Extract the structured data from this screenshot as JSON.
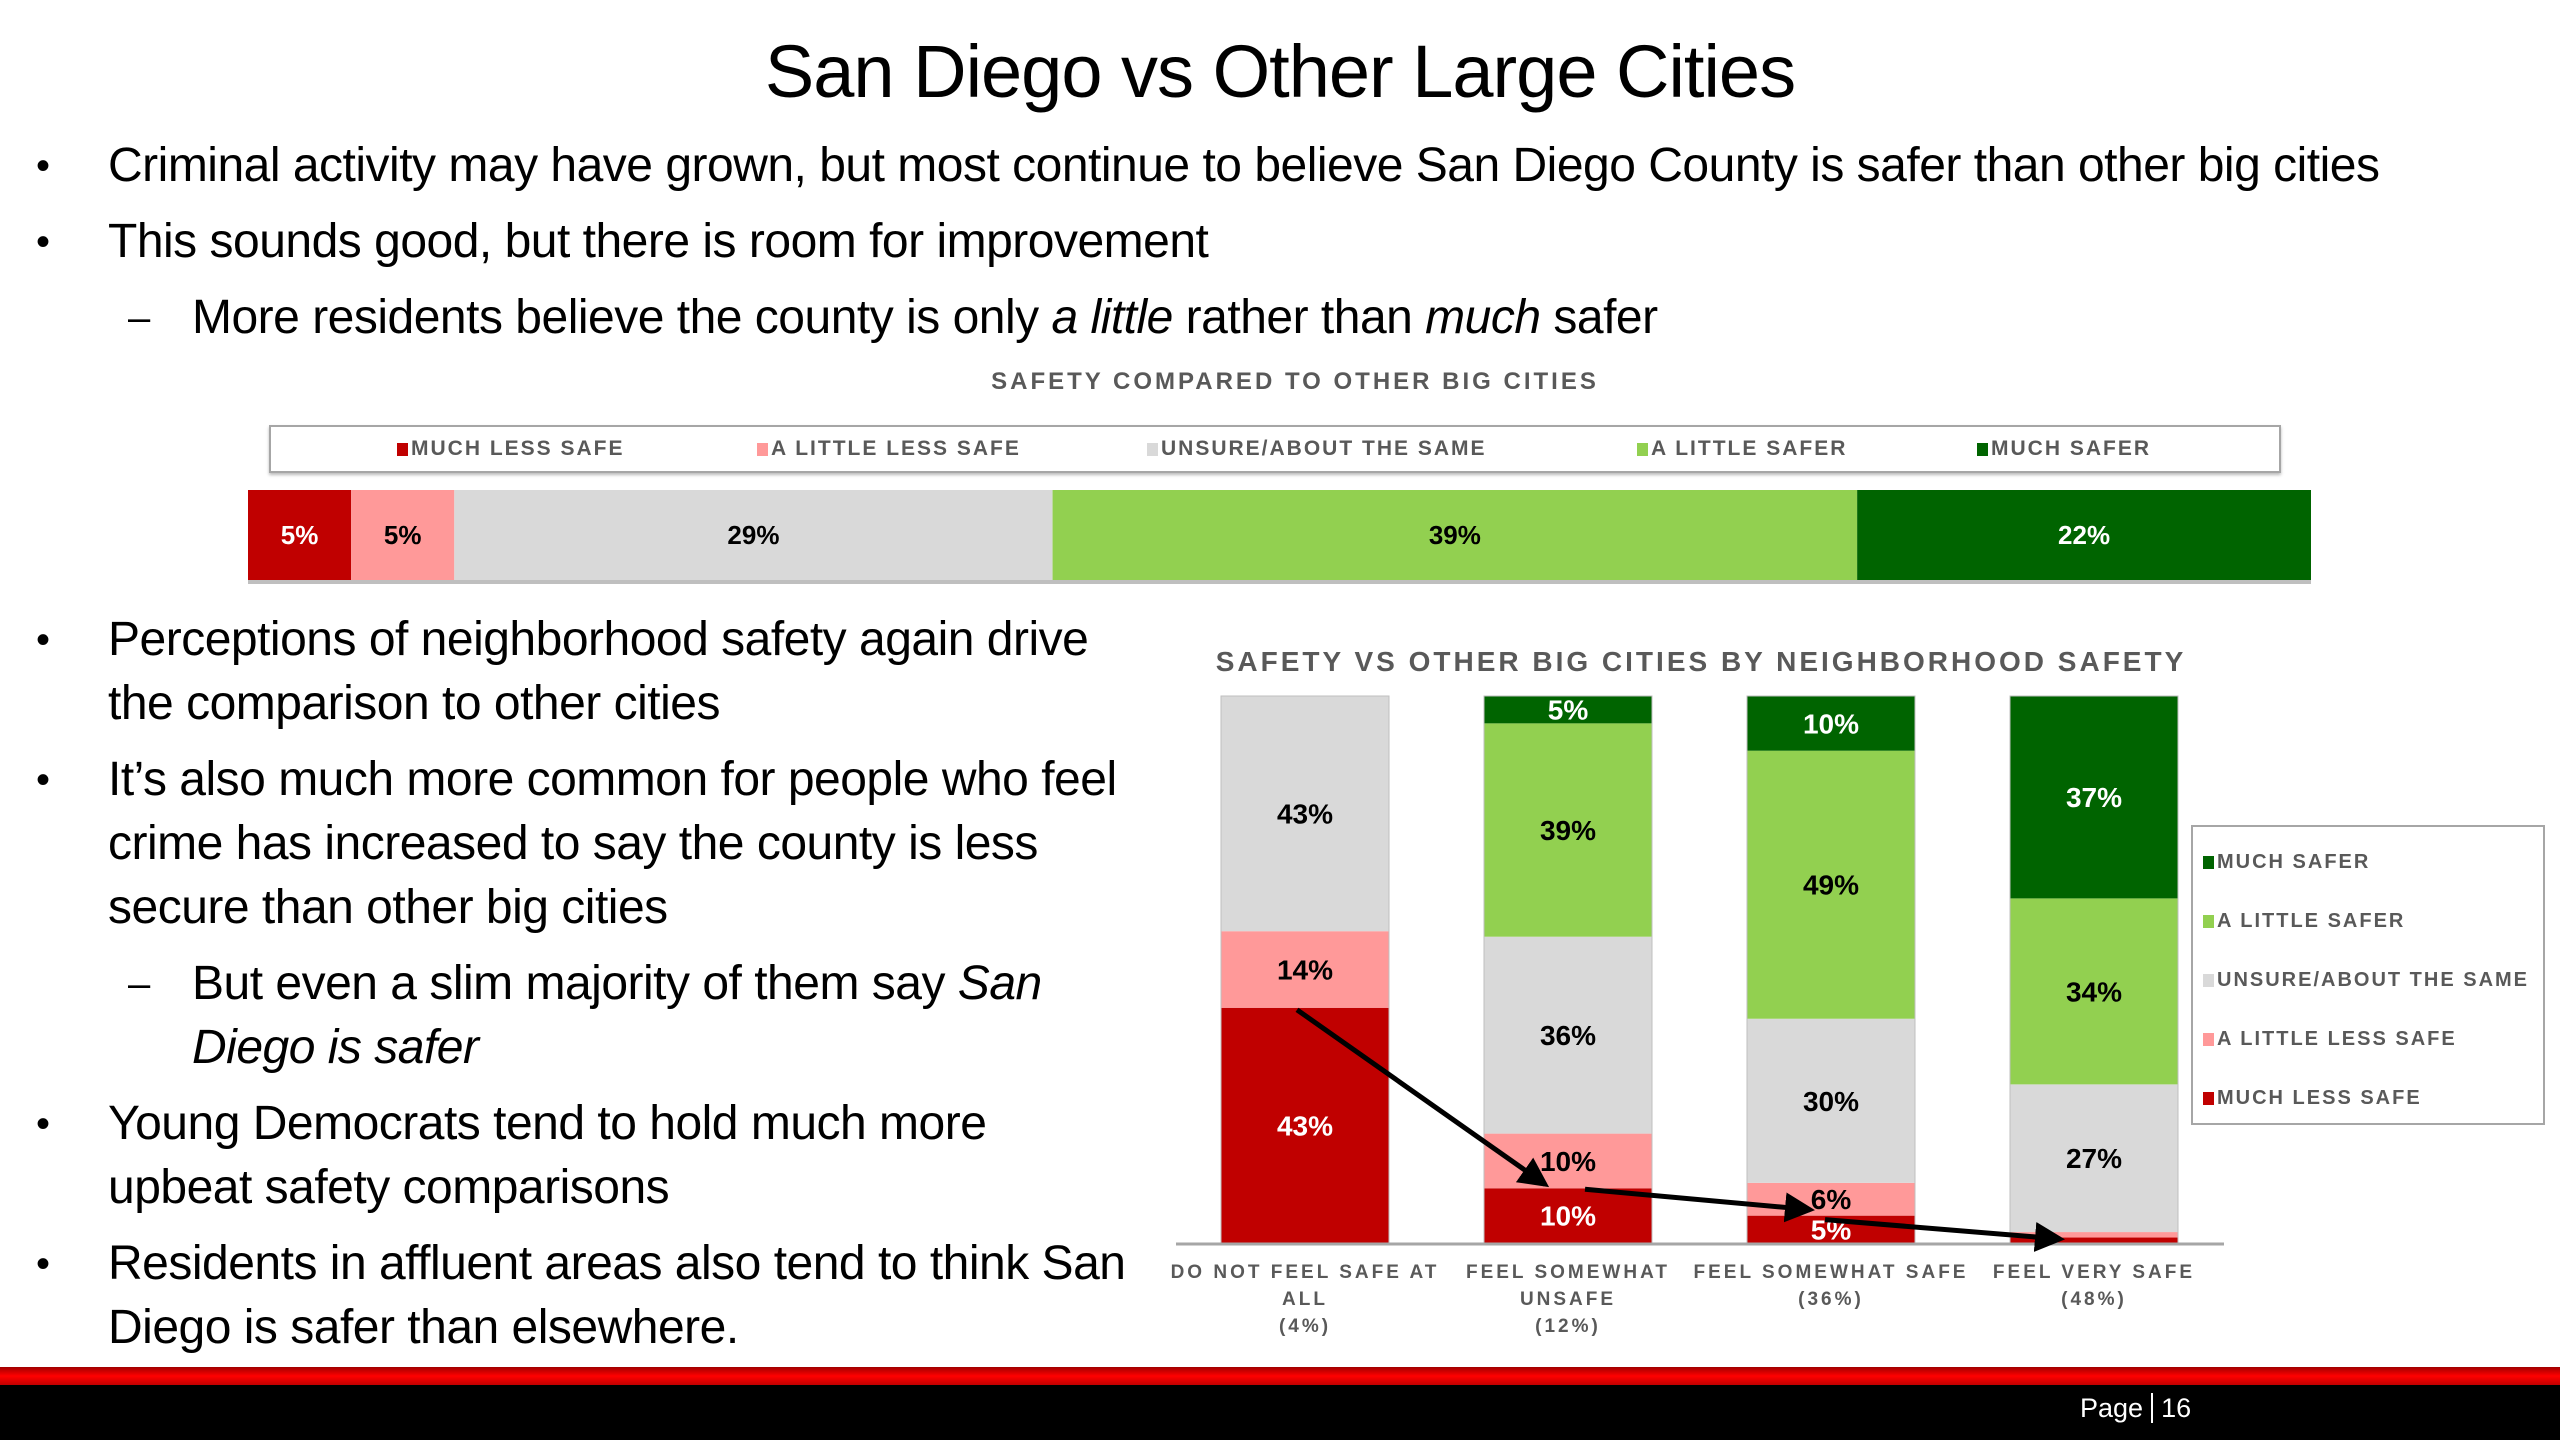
{
  "slide": {
    "title": "San Diego vs Other Large Cities",
    "top_bullets": [
      {
        "level": 1,
        "text": "Criminal activity may have grown, but most continue to believe San Diego County is safer than other big cities"
      },
      {
        "level": 1,
        "text": "This sounds good, but there is room for improvement"
      },
      {
        "level": 2,
        "parts": [
          "More residents believe the county is only ",
          "a little",
          " rather than ",
          "much",
          " safer"
        ]
      }
    ],
    "left_bullets": [
      {
        "level": 1,
        "text": "Perceptions of neighborhood safety again drive the comparison to other cities"
      },
      {
        "level": 1,
        "text": "It’s also much more common for people who feel crime has increased to say the county is less secure than other big cities"
      },
      {
        "level": 2,
        "parts": [
          "But even a slim majority of them say ",
          "San Diego is safer"
        ]
      },
      {
        "level": 1,
        "text": "Young Democrats tend to hold much more upbeat safety comparisons"
      },
      {
        "level": 1,
        "text": "Residents in affluent areas also tend to think San Diego is safer than elsewhere."
      }
    ],
    "bullet_glyph": "•",
    "sub_bullet_glyph": "–",
    "footer": {
      "page_label": "Page",
      "page_number": "16"
    }
  },
  "colors": {
    "much_less_safe": "#c00000",
    "a_little_less_safe": "#ff9999",
    "unsure_about_same": "#d9d9d9",
    "a_little_safer": "#92d050",
    "much_safer": "#006400",
    "footer_red": "#ff0000",
    "footer_black": "#000000"
  },
  "chart_data": [
    {
      "type": "bar",
      "orientation": "horizontal-stacked-100",
      "title": "SAFETY COMPARED TO OTHER BIG CITIES",
      "legend_position": "top",
      "series": [
        {
          "name": "MUCH LESS SAFE",
          "color_key": "much_less_safe",
          "value": 5,
          "label": "5%",
          "label_color": "#ffffff"
        },
        {
          "name": "A LITTLE LESS SAFE",
          "color_key": "a_little_less_safe",
          "value": 5,
          "label": "5%",
          "label_color": "#000000"
        },
        {
          "name": "UNSURE/ABOUT THE SAME",
          "color_key": "unsure_about_same",
          "value": 29,
          "label": "29%",
          "label_color": "#000000"
        },
        {
          "name": "A LITTLE SAFER",
          "color_key": "a_little_safer",
          "value": 39,
          "label": "39%",
          "label_color": "#000000"
        },
        {
          "name": "MUCH SAFER",
          "color_key": "much_safer",
          "value": 22,
          "label": "22%",
          "label_color": "#ffffff"
        }
      ]
    },
    {
      "type": "bar",
      "orientation": "vertical-stacked-100",
      "title": "SAFETY VS OTHER BIG CITIES BY NEIGHBORHOOD SAFETY",
      "legend_position": "right",
      "categories": [
        [
          "DO NOT FEEL SAFE AT",
          "ALL",
          "(4%)"
        ],
        [
          "FEEL SOMEWHAT",
          "UNSAFE",
          "(12%)"
        ],
        [
          "FEEL SOMEWHAT SAFE",
          "(36%)"
        ],
        [
          "FEEL VERY SAFE",
          "(48%)"
        ]
      ],
      "series": [
        {
          "name": "MUCH LESS SAFE",
          "color_key": "much_less_safe",
          "values": [
            43,
            10,
            5,
            1
          ],
          "labels": [
            "43%",
            "10%",
            "5%",
            ""
          ],
          "label_color": "#ffffff"
        },
        {
          "name": "A LITTLE LESS SAFE",
          "color_key": "a_little_less_safe",
          "values": [
            14,
            10,
            6,
            1
          ],
          "labels": [
            "14%",
            "10%",
            "6%",
            ""
          ],
          "label_color": "#000000"
        },
        {
          "name": "UNSURE/ABOUT THE SAME",
          "color_key": "unsure_about_same",
          "values": [
            43,
            36,
            30,
            27
          ],
          "labels": [
            "43%",
            "36%",
            "30%",
            "27%"
          ],
          "label_color": "#000000"
        },
        {
          "name": "A LITTLE SAFER",
          "color_key": "a_little_safer",
          "values": [
            0,
            39,
            49,
            34
          ],
          "labels": [
            "",
            "39%",
            "49%",
            "34%"
          ],
          "label_color": "#000000"
        },
        {
          "name": "MUCH SAFER",
          "color_key": "much_safer",
          "values": [
            0,
            5,
            10,
            37
          ],
          "labels": [
            "",
            "5%",
            "10%",
            "37%"
          ],
          "label_color": "#ffffff"
        }
      ],
      "legend_order": [
        "MUCH SAFER",
        "A LITTLE SAFER",
        "UNSURE/ABOUT THE SAME",
        "A LITTLE LESS SAFE",
        "MUCH LESS SAFE"
      ],
      "annotations": [
        {
          "type": "arrow-trend",
          "description": "Black arrows connecting the top of the 'much less safe' segment across categories, showing decline",
          "through_series": "MUCH LESS SAFE"
        }
      ],
      "ylim": [
        0,
        100
      ]
    }
  ]
}
